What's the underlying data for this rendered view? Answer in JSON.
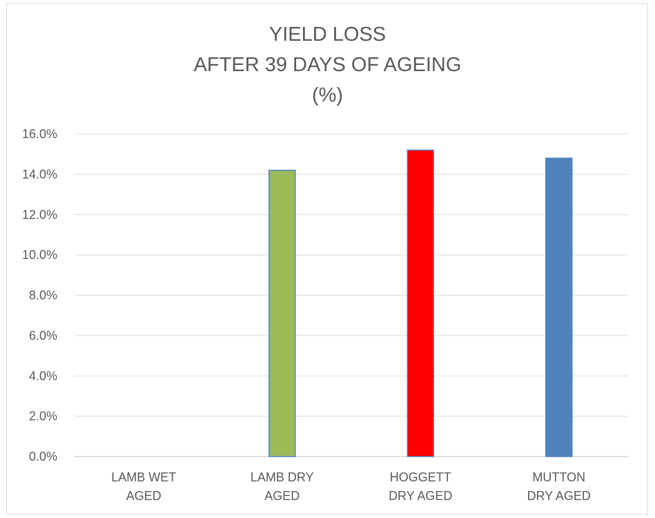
{
  "chart_data": {
    "type": "bar",
    "title": [
      "YIELD LOSS",
      "AFTER 39 DAYS OF AGEING",
      "(%)"
    ],
    "categories": [
      [
        "LAMB WET",
        "AGED"
      ],
      [
        "LAMB DRY",
        "AGED"
      ],
      [
        "HOGGETT",
        "DRY AGED"
      ],
      [
        "MUTTON",
        "DRY AGED"
      ]
    ],
    "values": [
      0.0,
      14.2,
      15.2,
      14.8
    ],
    "bar_colors": [
      "#9bbb59",
      "#9bbb59",
      "#ff0000",
      "#4f81bd"
    ],
    "y_tick_labels": [
      "0.0%",
      "2.0%",
      "4.0%",
      "6.0%",
      "8.0%",
      "10.0%",
      "12.0%",
      "14.0%",
      "16.0%"
    ],
    "ylim": [
      0,
      16
    ],
    "y_step": 2,
    "grid": true,
    "legend": "none"
  }
}
